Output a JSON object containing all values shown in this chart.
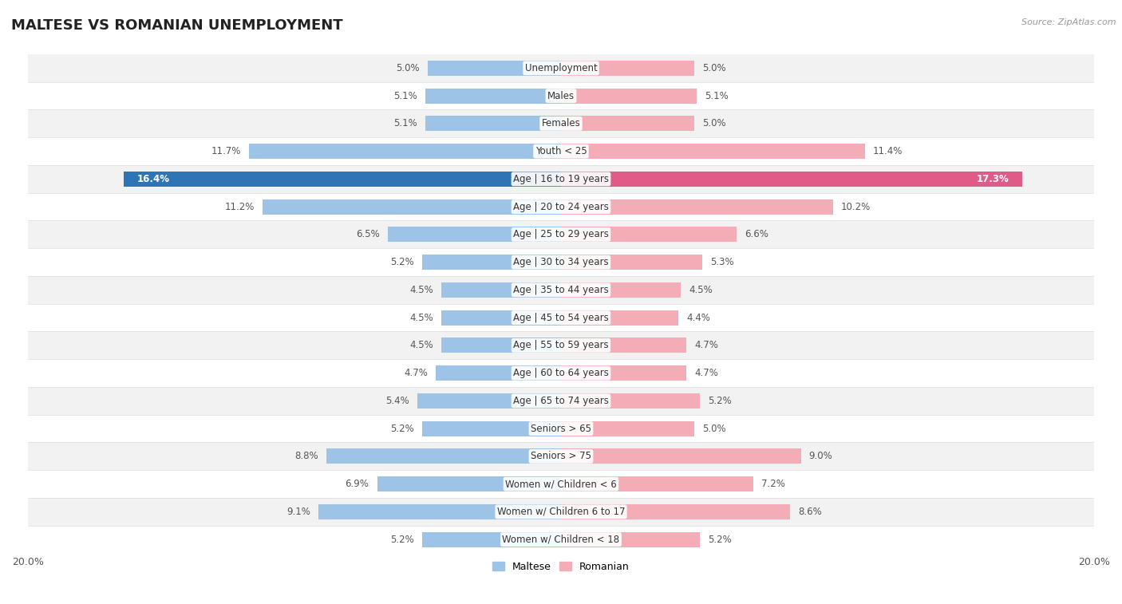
{
  "title": "MALTESE VS ROMANIAN UNEMPLOYMENT",
  "source": "Source: ZipAtlas.com",
  "categories": [
    "Unemployment",
    "Males",
    "Females",
    "Youth < 25",
    "Age | 16 to 19 years",
    "Age | 20 to 24 years",
    "Age | 25 to 29 years",
    "Age | 30 to 34 years",
    "Age | 35 to 44 years",
    "Age | 45 to 54 years",
    "Age | 55 to 59 years",
    "Age | 60 to 64 years",
    "Age | 65 to 74 years",
    "Seniors > 65",
    "Seniors > 75",
    "Women w/ Children < 6",
    "Women w/ Children 6 to 17",
    "Women w/ Children < 18"
  ],
  "maltese": [
    5.0,
    5.1,
    5.1,
    11.7,
    16.4,
    11.2,
    6.5,
    5.2,
    4.5,
    4.5,
    4.5,
    4.7,
    5.4,
    5.2,
    8.8,
    6.9,
    9.1,
    5.2
  ],
  "romanian": [
    5.0,
    5.1,
    5.0,
    11.4,
    17.3,
    10.2,
    6.6,
    5.3,
    4.5,
    4.4,
    4.7,
    4.7,
    5.2,
    5.0,
    9.0,
    7.2,
    8.6,
    5.2
  ],
  "maltese_color": "#9dc3e6",
  "romanian_color": "#f4acb7",
  "maltese_highlight_color": "#2e75b6",
  "romanian_highlight_color": "#e05a8a",
  "highlight_row": 4,
  "xlim": 20.0,
  "bar_height": 0.55,
  "bg_color": "#ffffff",
  "row_alt_color": "#f2f2f2",
  "row_main_color": "#ffffff",
  "label_fontsize": 8.5,
  "category_fontsize": 8.5,
  "title_fontsize": 13,
  "value_color_normal": "#555555",
  "value_color_highlight": "#ffffff"
}
